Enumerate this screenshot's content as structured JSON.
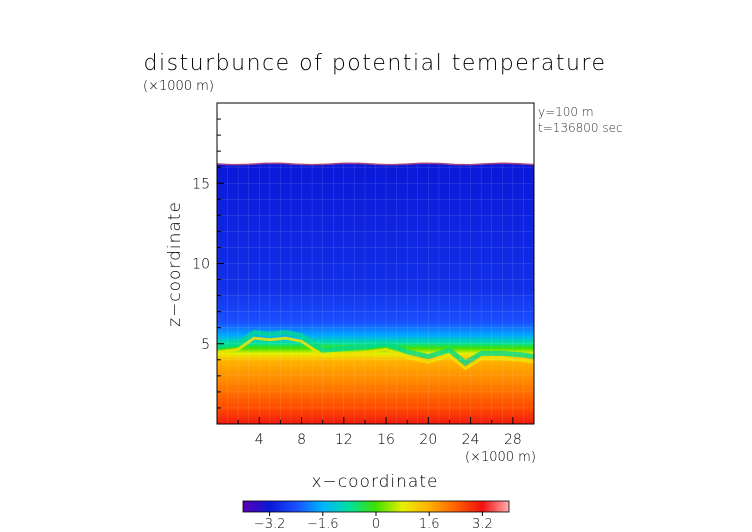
{
  "chart_data": {
    "type": "heatmap",
    "title": "disturbunce of potential temperature",
    "xlabel": "x−coordinate",
    "ylabel": "z−coordinate",
    "x_unit": "(×1000 m)",
    "z_unit": "(×1000 m)",
    "annotations": [
      "y=100 m",
      "t=136800 sec"
    ],
    "xlim": [
      0,
      30
    ],
    "ylim": [
      0,
      20
    ],
    "x_ticks": [
      4,
      8,
      12,
      16,
      20,
      24,
      28
    ],
    "x_tick_labels": [
      "4",
      "8",
      "12",
      "16",
      "20",
      "24",
      "28"
    ],
    "y_ticks": [
      5,
      10,
      15
    ],
    "y_tick_labels": [
      "5",
      "10",
      "15"
    ],
    "data_top_z": 16.2,
    "colorbar": {
      "range": [
        -4,
        4
      ],
      "ticks": [
        -3.2,
        -1.6,
        0,
        1.6,
        3.2
      ],
      "tick_labels": [
        "−3.2",
        "−1.6",
        "0",
        "1.6",
        "3.2"
      ],
      "colors": [
        "#5a00b4",
        "#0a18d8",
        "#1a50ff",
        "#00b4ff",
        "#00e0a0",
        "#40e000",
        "#e8f000",
        "#ffb000",
        "#ff6000",
        "#f01010",
        "#ffb0b0"
      ]
    },
    "interface_z": [
      [
        0,
        4.8
      ],
      [
        2,
        5.0
      ],
      [
        3.5,
        5.7
      ],
      [
        5,
        5.6
      ],
      [
        6.5,
        5.7
      ],
      [
        8,
        5.5
      ],
      [
        10,
        4.6
      ],
      [
        12,
        4.7
      ],
      [
        14,
        4.8
      ],
      [
        16,
        5.0
      ],
      [
        18,
        4.5
      ],
      [
        20,
        4.2
      ],
      [
        22,
        4.6
      ],
      [
        23.5,
        3.8
      ],
      [
        25,
        4.4
      ],
      [
        27,
        4.4
      ],
      [
        29,
        4.3
      ],
      [
        30,
        4.2
      ]
    ]
  }
}
